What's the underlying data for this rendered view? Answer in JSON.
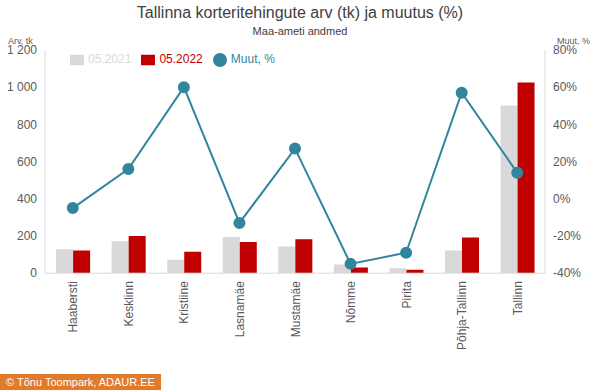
{
  "chart_data": {
    "type": "bar",
    "title": "Tallinna korteritehingute arv (tk) ja muutus (%)",
    "subtitle": "Maa-ameti andmed",
    "y_label": "Arv, tk",
    "y2_label": "Muut, %",
    "source": "© Tõnu Toompark, ADAUR.EE",
    "categories": [
      "Haabersti",
      "Kesklinn",
      "Kristiine",
      "Lasnamäe",
      "Mustamäe",
      "Nõmme",
      "Pirita",
      "Põhja-Tallinn",
      "Tallinn"
    ],
    "series": [
      {
        "name": "05.2021",
        "type": "bar",
        "color": "#d9d9d9",
        "values": [
          128,
          172,
          72,
          195,
          143,
          47,
          26,
          122,
          902
        ]
      },
      {
        "name": "05.2022",
        "type": "bar",
        "color": "#c00000",
        "values": [
          122,
          200,
          115,
          168,
          182,
          30,
          18,
          192,
          1025
        ]
      },
      {
        "name": "Muut, %",
        "type": "line",
        "axis": "y2",
        "color": "#31859c",
        "marker": "circle",
        "values": [
          -5,
          16,
          60,
          -13,
          27,
          -35,
          -29,
          57,
          14
        ]
      }
    ],
    "ylim": [
      0,
      1200
    ],
    "yticks": [
      0,
      200,
      400,
      600,
      800,
      {
        "value": 1000,
        "label": "1 000"
      },
      {
        "value": 1200,
        "label": "1 200"
      }
    ],
    "y2lim": [
      -40,
      80
    ],
    "y2ticks": [
      {
        "value": -40,
        "label": "-40%"
      },
      {
        "value": -20,
        "label": "-20%"
      },
      {
        "value": 0,
        "label": "0%"
      },
      {
        "value": 20,
        "label": "20%"
      },
      {
        "value": 40,
        "label": "40%"
      },
      {
        "value": 60,
        "label": "60%"
      },
      {
        "value": 80,
        "label": "80%"
      }
    ],
    "legend": "top-left",
    "grid": false
  }
}
